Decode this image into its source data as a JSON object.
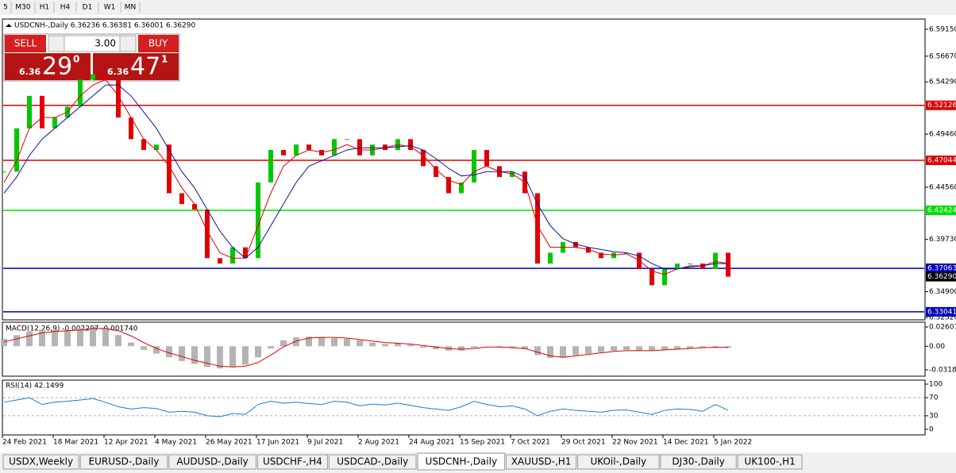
{
  "toolbar": {
    "timeframes": [
      "5",
      "M30",
      "H1",
      "H4",
      "D1",
      "W1",
      "MN"
    ]
  },
  "trade_panel": {
    "sell": "SELL",
    "buy": "BUY",
    "volume": "3.00",
    "sell_price": {
      "prefix": "6.36",
      "big": "29",
      "sup": "0"
    },
    "buy_price": {
      "prefix": "6.36",
      "big": "47",
      "sup": "1"
    }
  },
  "chart_data": {
    "type": "candlestick",
    "header": "USDCNH-,Daily 6.36236 6.36381 6.36001 6.36290",
    "x": [
      "24 Feb 2021",
      null,
      null,
      null,
      "18 Mar 2021",
      null,
      null,
      null,
      "12 Apr 2021",
      null,
      null,
      null,
      "4 May 2021",
      null,
      null,
      null,
      "26 May 2021",
      null,
      null,
      null,
      "17 Jun 2021",
      null,
      null,
      null,
      "9 Jul 2021",
      null,
      null,
      null,
      "2 Aug 2021",
      null,
      null,
      null,
      "24 Aug 2021",
      null,
      null,
      null,
      "15 Sep 2021",
      null,
      null,
      null,
      "7 Oct 2021",
      null,
      null,
      null,
      "29 Oct 2021",
      null,
      null,
      null,
      "22 Nov 2021",
      null,
      null,
      null,
      "14 Dec 2021",
      null,
      null,
      null,
      "5 Jan 2022",
      null
    ],
    "up_color": "#00c800",
    "down_color": "#e00000",
    "close": [
      6.46,
      6.5,
      6.53,
      6.5,
      6.51,
      6.52,
      6.545,
      6.55,
      6.545,
      6.51,
      6.49,
      6.48,
      6.485,
      6.44,
      6.43,
      6.425,
      6.38,
      6.375,
      6.39,
      6.38,
      6.45,
      6.48,
      6.475,
      6.485,
      6.48,
      6.475,
      6.49,
      6.49,
      6.475,
      6.485,
      6.48,
      6.49,
      6.48,
      6.465,
      6.455,
      6.44,
      6.45,
      6.48,
      6.465,
      6.455,
      6.46,
      6.44,
      6.375,
      6.385,
      6.395,
      6.39,
      6.385,
      6.38,
      6.385,
      6.385,
      6.37,
      6.355,
      6.37,
      6.375,
      6.375,
      6.37,
      6.385,
      6.3629
    ],
    "series": [
      {
        "color": "#e00000",
        "values": [
          6.45,
          6.47,
          6.5,
          6.51,
          6.51,
          6.515,
          6.53,
          6.54,
          6.545,
          6.53,
          6.51,
          6.49,
          6.48,
          6.465,
          6.445,
          6.43,
          6.405,
          6.385,
          6.38,
          6.38,
          6.41,
          6.44,
          6.465,
          6.475,
          6.48,
          6.478,
          6.48,
          6.485,
          6.48,
          6.48,
          6.482,
          6.485,
          6.483,
          6.475,
          6.462,
          6.452,
          6.448,
          6.46,
          6.465,
          6.46,
          6.458,
          6.45,
          6.41,
          6.39,
          6.39,
          6.39,
          6.388,
          6.384,
          6.383,
          6.384,
          6.378,
          6.368,
          6.365,
          6.37,
          6.373,
          6.373,
          6.377,
          6.375
        ]
      },
      {
        "color": "#1010a0",
        "values": [
          6.44,
          6.455,
          6.475,
          6.49,
          6.5,
          6.51,
          6.52,
          6.53,
          6.54,
          6.54,
          6.53,
          6.515,
          6.5,
          6.48,
          6.46,
          6.445,
          6.425,
          6.405,
          6.39,
          6.38,
          6.39,
          6.41,
          6.43,
          6.45,
          6.465,
          6.47,
          6.475,
          6.48,
          6.482,
          6.482,
          6.482,
          6.483,
          6.484,
          6.48,
          6.472,
          6.463,
          6.456,
          6.457,
          6.46,
          6.46,
          6.46,
          6.455,
          6.43,
          6.41,
          6.398,
          6.393,
          6.39,
          6.388,
          6.386,
          6.385,
          6.382,
          6.375,
          6.37,
          6.37,
          6.372,
          6.373,
          6.375,
          6.375
        ]
      }
    ],
    "levels": [
      {
        "value": 6.52126,
        "color": "#e00000"
      },
      {
        "value": 6.47044,
        "color": "#e00000"
      },
      {
        "value": 6.42424,
        "color": "#00e000"
      },
      {
        "value": 6.37063,
        "color": "#0000c0"
      },
      {
        "value": 6.33041,
        "color": "#0000c0"
      }
    ],
    "current": {
      "value": 6.3629,
      "label": "6.36290"
    },
    "ylim": [
      6.323,
      6.601
    ],
    "yticks": [
      {
        "value": 6.5915,
        "label": "6.59150"
      },
      {
        "value": 6.5667,
        "label": "6.56670"
      },
      {
        "value": 6.5429,
        "label": "6.54290"
      },
      {
        "value": 6.4946,
        "label": "6.49460"
      },
      {
        "value": 6.4456,
        "label": "6.44560"
      },
      {
        "value": 6.3973,
        "label": "6.39730"
      },
      {
        "value": 6.349,
        "label": "6.34900"
      },
      {
        "value": 6.3252,
        "label": "6.32520"
      }
    ],
    "macd": {
      "title": "MACD(12,26,9) -0.002207 -0.001740",
      "hist_color": "#b4b4b4",
      "signal_color": "#e00000",
      "hist": [
        0.01,
        0.015,
        0.02,
        0.022,
        0.022,
        0.022,
        0.024,
        0.026,
        0.024,
        0.015,
        0.005,
        -0.005,
        -0.01,
        -0.015,
        -0.02,
        -0.024,
        -0.028,
        -0.03,
        -0.028,
        -0.025,
        -0.015,
        -0.003,
        0.008,
        0.012,
        0.013,
        0.012,
        0.011,
        0.01,
        0.008,
        0.005,
        0.003,
        0.004,
        0.002,
        -0.002,
        -0.004,
        -0.006,
        -0.006,
        -0.002,
        0.0,
        -0.001,
        -0.002,
        -0.004,
        -0.012,
        -0.016,
        -0.015,
        -0.012,
        -0.01,
        -0.008,
        -0.006,
        -0.005,
        -0.006,
        -0.006,
        -0.005,
        -0.004,
        -0.003,
        -0.002,
        -0.001,
        -0.002207
      ],
      "signal": [
        0.006,
        0.01,
        0.014,
        0.018,
        0.02,
        0.021,
        0.022,
        0.024,
        0.024,
        0.021,
        0.014,
        0.005,
        -0.003,
        -0.009,
        -0.014,
        -0.019,
        -0.023,
        -0.027,
        -0.028,
        -0.027,
        -0.022,
        -0.012,
        -0.001,
        0.007,
        0.011,
        0.012,
        0.012,
        0.011,
        0.009,
        0.007,
        0.005,
        0.004,
        0.003,
        0.001,
        -0.001,
        -0.003,
        -0.004,
        -0.003,
        -0.001,
        -0.001,
        -0.002,
        -0.003,
        -0.008,
        -0.013,
        -0.015,
        -0.013,
        -0.011,
        -0.009,
        -0.007,
        -0.006,
        -0.006,
        -0.006,
        -0.005,
        -0.004,
        -0.003,
        -0.002,
        -0.0015,
        -0.00174
      ],
      "ylim": [
        -0.0405,
        0.0325
      ],
      "yticks": [
        0.02607,
        {
          "value": 0,
          "label": "0.00"
        },
        -0.03187
      ]
    },
    "rsi": {
      "title": "RSI(14) 42.1499",
      "color": "#1e78d2",
      "values": [
        60,
        65,
        70,
        55,
        60,
        62,
        65,
        68,
        60,
        50,
        45,
        48,
        46,
        38,
        40,
        38,
        30,
        28,
        35,
        33,
        55,
        62,
        58,
        60,
        57,
        55,
        62,
        60,
        52,
        56,
        54,
        58,
        53,
        48,
        45,
        42,
        50,
        62,
        55,
        50,
        52,
        45,
        30,
        40,
        45,
        42,
        40,
        38,
        42,
        43,
        38,
        33,
        42,
        45,
        44,
        40,
        55,
        42.1499
      ],
      "ylim": [
        -12.3,
        108.8
      ],
      "yticks": [
        100,
        70,
        30,
        0
      ],
      "levels": [
        70,
        30
      ]
    }
  },
  "tabs": {
    "items": [
      "USDX,Weekly",
      "EURUSD-,Daily",
      "AUDUSD-,Daily",
      "USDCHF-,H4",
      "USDCAD-,Daily",
      "USDCNH-,Daily",
      "XAUUSD-,H1",
      "UKOil-,Daily",
      "DJ30-,Daily",
      "UK100-,H1"
    ],
    "active": 5
  }
}
